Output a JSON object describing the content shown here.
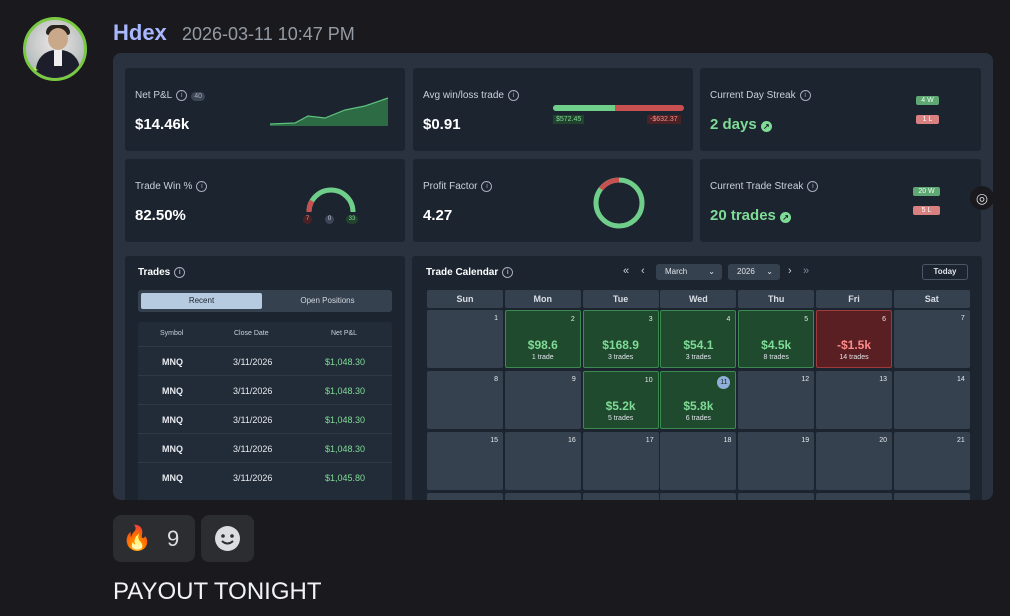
{
  "message": {
    "author": "Hdex",
    "timestamp": "2026-03-11 10:47 PM",
    "text": "PAYOUT TONIGHT"
  },
  "reactions": [
    {
      "emoji": "🔥",
      "count": "9"
    },
    {
      "emoji": "emoji-smile-icon",
      "count": ""
    }
  ],
  "dashboard": {
    "net_pnl": {
      "label": "Net P&L",
      "badge": "40",
      "value": "$14.46k"
    },
    "avg_trade": {
      "label": "Avg win/loss trade",
      "value": "$0.91",
      "win": "$572.45",
      "loss": "-$632.37",
      "win_fraction": 0.47
    },
    "day_streak": {
      "label": "Current Day Streak",
      "value": "2 days",
      "wins": "4 W",
      "losses": "1 L"
    },
    "win_pct": {
      "label": "Trade Win %",
      "value": "82.50%",
      "losses": "7",
      "even": "0",
      "wins": "33"
    },
    "profit_factor": {
      "label": "Profit Factor",
      "value": "4.27"
    },
    "trade_streak": {
      "label": "Current Trade Streak",
      "value": "20 trades",
      "wins": "20 W",
      "losses": "5 L"
    },
    "trades": {
      "title": "Trades",
      "tabs": [
        "Recent",
        "Open Positions"
      ],
      "columns": [
        "Symbol",
        "Close Date",
        "Net P&L"
      ],
      "rows": [
        [
          "MNQ",
          "3/11/2026",
          "$1,048.30"
        ],
        [
          "MNQ",
          "3/11/2026",
          "$1,048.30"
        ],
        [
          "MNQ",
          "3/11/2026",
          "$1,048.30"
        ],
        [
          "MNQ",
          "3/11/2026",
          "$1,048.30"
        ],
        [
          "MNQ",
          "3/11/2026",
          "$1,045.80"
        ]
      ]
    },
    "calendar": {
      "title": "Trade Calendar",
      "month": "March",
      "year": "2026",
      "today_label": "Today",
      "days": [
        "Sun",
        "Mon",
        "Tue",
        "Wed",
        "Thu",
        "Fri",
        "Sat"
      ],
      "week1": [
        {
          "d": "1"
        },
        {
          "d": "2",
          "amt": "$98.6",
          "cnt": "1 trade",
          "s": "g"
        },
        {
          "d": "3",
          "amt": "$168.9",
          "cnt": "3 trades",
          "s": "g"
        },
        {
          "d": "4",
          "amt": "$54.1",
          "cnt": "3 trades",
          "s": "g"
        },
        {
          "d": "5",
          "amt": "$4.5k",
          "cnt": "8 trades",
          "s": "g"
        },
        {
          "d": "6",
          "amt": "-$1.5k",
          "cnt": "14 trades",
          "s": "r"
        },
        {
          "d": "7"
        }
      ],
      "week2": [
        {
          "d": "8"
        },
        {
          "d": "9"
        },
        {
          "d": "10",
          "amt": "$5.2k",
          "cnt": "5 trades",
          "s": "g"
        },
        {
          "d": "11",
          "amt": "$5.8k",
          "cnt": "6 trades",
          "s": "g"
        },
        {
          "d": "12"
        },
        {
          "d": "13"
        },
        {
          "d": "14"
        }
      ],
      "week3": [
        {
          "d": "15"
        },
        {
          "d": "16"
        },
        {
          "d": "17"
        },
        {
          "d": "18"
        },
        {
          "d": "19"
        },
        {
          "d": "20"
        },
        {
          "d": "21"
        }
      ]
    }
  }
}
